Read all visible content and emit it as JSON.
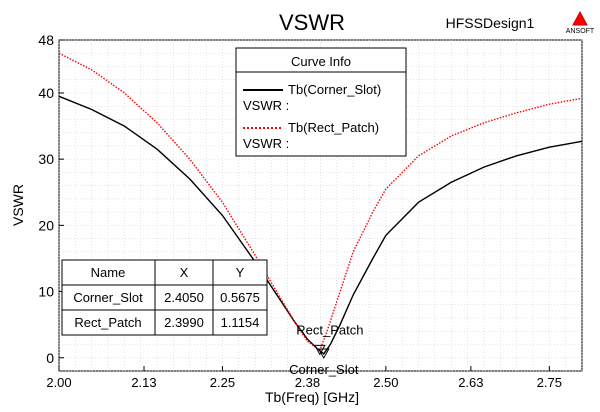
{
  "header": {
    "title": "VSWR",
    "design_name": "HFSSDesign1",
    "logo_text": "ANSOFT"
  },
  "legend": {
    "title": "Curve Info",
    "entries": [
      {
        "name": "Tb(Corner_Slot)",
        "sub": "VSWR :",
        "color": "#000000",
        "dash": "solid"
      },
      {
        "name": "Tb(Rect_Patch)",
        "sub": "VSWR :",
        "color": "#ff0000",
        "dash": "dotted"
      }
    ]
  },
  "marker_table": {
    "headers": [
      "Name",
      "X",
      "Y"
    ],
    "rows": [
      [
        "Corner_Slot",
        "2.4050",
        "0.5675"
      ],
      [
        "Rect_Patch",
        "2.3990",
        "1.1154"
      ]
    ]
  },
  "markers": [
    {
      "label": "Rect_Patch",
      "x": 2.399,
      "y": 1.1154
    },
    {
      "label": "Corner_Slot",
      "x": 2.405,
      "y": 0.5675
    }
  ],
  "chart_data": {
    "type": "line",
    "title": "VSWR",
    "xlabel": "Tb(Freq) [GHz]",
    "ylabel": "VSWR",
    "xlim": [
      2.0,
      2.8
    ],
    "ylim": [
      -2,
      48
    ],
    "xticks": [
      "2.00",
      "2.13",
      "2.25",
      "2.38",
      "2.50",
      "2.63",
      "2.75"
    ],
    "yticks": [
      "0",
      "10",
      "20",
      "30",
      "40",
      "48"
    ],
    "grid": true,
    "legend_position": "top-center",
    "series": [
      {
        "name": "Tb(Corner_Slot)",
        "color": "#000000",
        "x": [
          2.0,
          2.05,
          2.1,
          2.15,
          2.2,
          2.25,
          2.3,
          2.33,
          2.36,
          2.38,
          2.395,
          2.405,
          2.415,
          2.43,
          2.45,
          2.48,
          2.5,
          2.55,
          2.6,
          2.65,
          2.7,
          2.75,
          2.8
        ],
        "y": [
          39.5,
          37.5,
          35.0,
          31.5,
          27.0,
          21.5,
          14.5,
          10.0,
          5.5,
          2.8,
          1.4,
          0.6,
          2.0,
          5.0,
          9.5,
          15.0,
          18.5,
          23.5,
          26.5,
          28.8,
          30.5,
          31.8,
          32.7
        ]
      },
      {
        "name": "Tb(Rect_Patch)",
        "color": "#ff0000",
        "x": [
          2.0,
          2.05,
          2.1,
          2.15,
          2.2,
          2.25,
          2.3,
          2.33,
          2.36,
          2.38,
          2.399,
          2.41,
          2.43,
          2.45,
          2.48,
          2.5,
          2.55,
          2.6,
          2.65,
          2.7,
          2.75,
          2.8
        ],
        "y": [
          46.0,
          43.5,
          40.0,
          35.5,
          30.0,
          23.5,
          15.5,
          10.5,
          5.5,
          2.5,
          1.1,
          4.0,
          10.0,
          16.0,
          22.0,
          25.5,
          30.5,
          33.5,
          35.5,
          37.0,
          38.3,
          39.2
        ]
      }
    ]
  }
}
